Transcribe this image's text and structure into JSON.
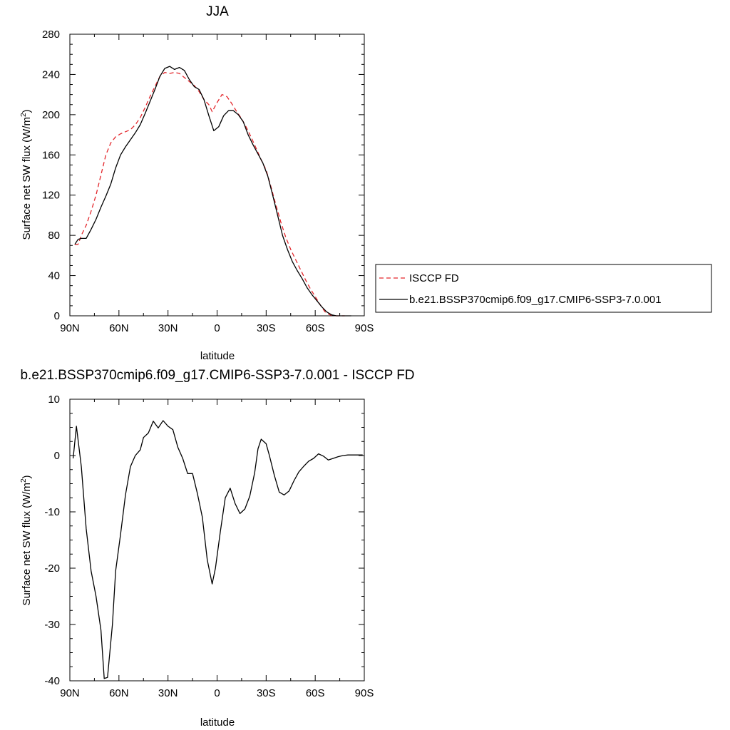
{
  "chart_data": [
    {
      "type": "line",
      "title": "JJA",
      "xlabel": "latitude",
      "ylabel": "Surface net SW flux (W/m",
      "ylabel_sup": "2",
      "ylabel_tail": ")",
      "xlim": [
        90,
        -90
      ],
      "ylim": [
        0,
        280
      ],
      "x_ticks": [
        {
          "value": 90,
          "label": "90N"
        },
        {
          "value": 60,
          "label": "60N"
        },
        {
          "value": 30,
          "label": "30N"
        },
        {
          "value": 0,
          "label": "0"
        },
        {
          "value": -30,
          "label": "30S"
        },
        {
          "value": -60,
          "label": "60S"
        },
        {
          "value": -90,
          "label": "90S"
        }
      ],
      "y_ticks": [
        {
          "value": 0,
          "label": "0"
        },
        {
          "value": 40,
          "label": "40"
        },
        {
          "value": 80,
          "label": "80"
        },
        {
          "value": 120,
          "label": "120"
        },
        {
          "value": 160,
          "label": "160"
        },
        {
          "value": 200,
          "label": "200"
        },
        {
          "value": 240,
          "label": "240"
        },
        {
          "value": 280,
          "label": "280"
        }
      ],
      "legend": {
        "placement": "right",
        "entries": [
          {
            "series": 0,
            "label": "ISCCP FD"
          },
          {
            "series": 1,
            "label": "b.e21.BSSP370cmip6.f09_g17.CMIP6-SSP3-7.0.001"
          }
        ]
      },
      "series": [
        {
          "name": "ISCCP FD",
          "color": "#e3262b",
          "dashed": true,
          "points": [
            [
              87,
              71
            ],
            [
              85,
              71
            ],
            [
              83,
              80
            ],
            [
              80,
              90
            ],
            [
              77,
              104
            ],
            [
              74,
              120
            ],
            [
              71,
              140
            ],
            [
              68,
              160
            ],
            [
              65,
              172
            ],
            [
              62,
              178
            ],
            [
              59,
              181
            ],
            [
              56,
              183
            ],
            [
              53,
              185
            ],
            [
              50,
              190
            ],
            [
              47,
              197
            ],
            [
              44,
              207
            ],
            [
              41,
              218
            ],
            [
              38,
              228
            ],
            [
              35,
              238
            ],
            [
              32,
              242
            ],
            [
              29,
              241
            ],
            [
              26,
              242
            ],
            [
              23,
              241
            ],
            [
              20,
              237
            ],
            [
              17,
              233
            ],
            [
              14,
              229
            ],
            [
              11,
              223
            ],
            [
              8,
              215
            ],
            [
              5,
              210
            ],
            [
              3,
              203
            ],
            [
              0,
              212
            ],
            [
              -3,
              220
            ],
            [
              -6,
              218
            ],
            [
              -9,
              211
            ],
            [
              -12,
              203
            ],
            [
              -15,
              196
            ],
            [
              -18,
              187
            ],
            [
              -21,
              177
            ],
            [
              -24,
              166
            ],
            [
              -27,
              155
            ],
            [
              -30,
              145
            ],
            [
              -33,
              128
            ],
            [
              -36,
              110
            ],
            [
              -39,
              93
            ],
            [
              -42,
              78
            ],
            [
              -45,
              66
            ],
            [
              -48,
              56
            ],
            [
              -51,
              46
            ],
            [
              -54,
              36
            ],
            [
              -57,
              27
            ],
            [
              -60,
              19
            ],
            [
              -63,
              11
            ],
            [
              -66,
              4
            ],
            [
              -69,
              1
            ],
            [
              -72,
              0
            ],
            [
              -75,
              0
            ],
            [
              -78,
              0
            ]
          ]
        },
        {
          "name": "b.e21.BSSP370cmip6.f09_g17.CMIP6-SSP3-7.0.001",
          "color": "#000000",
          "dashed": false,
          "points": [
            [
              87,
              71
            ],
            [
              85,
              76
            ],
            [
              83,
              77
            ],
            [
              80,
              77
            ],
            [
              77,
              86
            ],
            [
              74,
              96
            ],
            [
              71,
              108
            ],
            [
              68,
              119
            ],
            [
              65,
              131
            ],
            [
              62,
              147
            ],
            [
              59,
              160
            ],
            [
              56,
              168
            ],
            [
              53,
              175
            ],
            [
              50,
              182
            ],
            [
              47,
              190
            ],
            [
              44,
              201
            ],
            [
              41,
              213
            ],
            [
              38,
              225
            ],
            [
              35,
              238
            ],
            [
              32,
              246
            ],
            [
              29,
              248
            ],
            [
              26,
              245
            ],
            [
              23,
              247
            ],
            [
              20,
              244
            ],
            [
              17,
              235
            ],
            [
              14,
              228
            ],
            [
              11,
              225
            ],
            [
              8,
              215
            ],
            [
              5,
              199
            ],
            [
              2,
              184
            ],
            [
              -1,
              188
            ],
            [
              -4,
              199
            ],
            [
              -7,
              204
            ],
            [
              -10,
              204
            ],
            [
              -13,
              200
            ],
            [
              -16,
              193
            ],
            [
              -19,
              180
            ],
            [
              -22,
              170
            ],
            [
              -25,
              161
            ],
            [
              -28,
              152
            ],
            [
              -31,
              139
            ],
            [
              -34,
              120
            ],
            [
              -37,
              100
            ],
            [
              -40,
              80
            ],
            [
              -43,
              66
            ],
            [
              -46,
              54
            ],
            [
              -49,
              45
            ],
            [
              -52,
              37
            ],
            [
              -55,
              28
            ],
            [
              -58,
              21
            ],
            [
              -61,
              15
            ],
            [
              -64,
              9
            ],
            [
              -67,
              4
            ],
            [
              -70,
              1
            ],
            [
              -73,
              0
            ],
            [
              -76,
              0
            ],
            [
              -79,
              0
            ],
            [
              -82,
              0
            ]
          ]
        }
      ]
    },
    {
      "type": "line",
      "title": "b.e21.BSSP370cmip6.f09_g17.CMIP6-SSP3-7.0.001 - ISCCP FD",
      "xlabel": "latitude",
      "ylabel": "Surface net SW flux (W/m",
      "ylabel_sup": "2",
      "ylabel_tail": ")",
      "xlim": [
        90,
        -90
      ],
      "ylim": [
        -40,
        10
      ],
      "x_ticks": [
        {
          "value": 90,
          "label": "90N"
        },
        {
          "value": 60,
          "label": "60N"
        },
        {
          "value": 30,
          "label": "30N"
        },
        {
          "value": 0,
          "label": "0"
        },
        {
          "value": -30,
          "label": "30S"
        },
        {
          "value": -60,
          "label": "60S"
        },
        {
          "value": -90,
          "label": "90S"
        }
      ],
      "y_ticks": [
        {
          "value": -40,
          "label": "-40"
        },
        {
          "value": -30,
          "label": "-30"
        },
        {
          "value": -20,
          "label": "-20"
        },
        {
          "value": -10,
          "label": "-10"
        },
        {
          "value": 0,
          "label": "0"
        },
        {
          "value": 10,
          "label": "10"
        }
      ],
      "series": [
        {
          "name": "",
          "color": "#000000",
          "dashed": false,
          "points": [
            [
              88,
              -0.5
            ],
            [
              86,
              5.2
            ],
            [
              83,
              -2
            ],
            [
              80,
              -13
            ],
            [
              77,
              -20.5
            ],
            [
              74,
              -25
            ],
            [
              71,
              -31
            ],
            [
              69,
              -39.6
            ],
            [
              67,
              -39.4
            ],
            [
              64,
              -30
            ],
            [
              62,
              -20.5
            ],
            [
              59,
              -14
            ],
            [
              56,
              -7
            ],
            [
              53,
              -2
            ],
            [
              50,
              0
            ],
            [
              47,
              1
            ],
            [
              45,
              3.2
            ],
            [
              42,
              4
            ],
            [
              39,
              6.1
            ],
            [
              36,
              4.9
            ],
            [
              33,
              6.2
            ],
            [
              30,
              5.2
            ],
            [
              27,
              4.6
            ],
            [
              24,
              1.5
            ],
            [
              21,
              -0.5
            ],
            [
              18,
              -3.2
            ],
            [
              15,
              -3.2
            ],
            [
              12,
              -6.8
            ],
            [
              9,
              -11
            ],
            [
              6,
              -18.5
            ],
            [
              3,
              -22.8
            ],
            [
              1,
              -20
            ],
            [
              -2,
              -13.5
            ],
            [
              -5,
              -7.5
            ],
            [
              -8,
              -5.8
            ],
            [
              -11,
              -8.5
            ],
            [
              -14,
              -10.3
            ],
            [
              -17,
              -9.5
            ],
            [
              -20,
              -7.2
            ],
            [
              -23,
              -3
            ],
            [
              -25,
              1.2
            ],
            [
              -27,
              2.9
            ],
            [
              -30,
              2.1
            ],
            [
              -32,
              0
            ],
            [
              -35,
              -3.5
            ],
            [
              -38,
              -6.5
            ],
            [
              -41,
              -7
            ],
            [
              -44,
              -6.3
            ],
            [
              -47,
              -4.5
            ],
            [
              -50,
              -2.9
            ],
            [
              -53,
              -1.9
            ],
            [
              -56,
              -1
            ],
            [
              -59,
              -0.5
            ],
            [
              -62,
              0.3
            ],
            [
              -65,
              -0.1
            ],
            [
              -68,
              -0.8
            ],
            [
              -71,
              -0.5
            ],
            [
              -74,
              -0.2
            ],
            [
              -77,
              0
            ],
            [
              -80,
              0.1
            ],
            [
              -83,
              0.1
            ],
            [
              -86,
              0.1
            ],
            [
              -89,
              0.1
            ]
          ]
        }
      ]
    }
  ]
}
